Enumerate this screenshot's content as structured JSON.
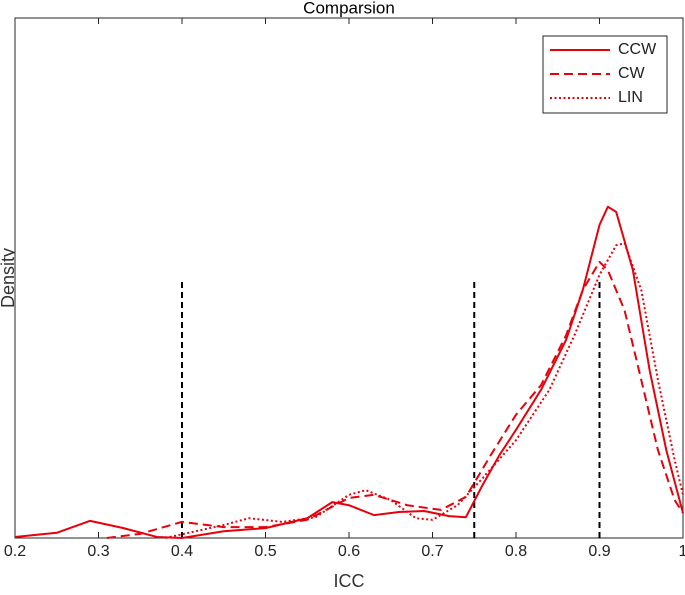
{
  "chart_data": {
    "type": "line",
    "title": "Comparsion",
    "x_label": "ICC",
    "y_label": "Density",
    "xlim": [
      0.2,
      1
    ],
    "ylim": [
      0,
      1
    ],
    "xticks": [
      0.2,
      0.3,
      0.4,
      0.5,
      0.6,
      0.7,
      0.8,
      0.9,
      1
    ],
    "vlines": [
      0.4,
      0.75,
      0.9
    ],
    "vline_height": 0.5,
    "legend": "top-right",
    "series": [
      {
        "name": "CCW",
        "color": "#e8000b",
        "style": "solid",
        "x": [
          0.2,
          0.25,
          0.29,
          0.33,
          0.37,
          0.4,
          0.45,
          0.5,
          0.55,
          0.58,
          0.6,
          0.63,
          0.66,
          0.69,
          0.72,
          0.74,
          0.76,
          0.78,
          0.8,
          0.83,
          0.86,
          0.88,
          0.9,
          0.91,
          0.92,
          0.94,
          0.96,
          0.98,
          1
        ],
        "values": [
          0.002,
          0.01,
          0.033,
          0.019,
          0.002,
          0,
          0.013,
          0.019,
          0.038,
          0.069,
          0.063,
          0.044,
          0.05,
          0.052,
          0.042,
          0.04,
          0.102,
          0.159,
          0.208,
          0.285,
          0.381,
          0.477,
          0.602,
          0.637,
          0.627,
          0.515,
          0.323,
          0.169,
          0.048
        ]
      },
      {
        "name": "CW",
        "color": "#e8000b",
        "style": "dashed",
        "x": [
          0.31,
          0.35,
          0.4,
          0.45,
          0.5,
          0.55,
          0.6,
          0.63,
          0.67,
          0.71,
          0.74,
          0.77,
          0.8,
          0.83,
          0.86,
          0.88,
          0.9,
          0.91,
          0.93,
          0.95,
          0.97,
          0.99,
          1
        ],
        "values": [
          0,
          0.008,
          0.031,
          0.021,
          0.021,
          0.035,
          0.077,
          0.083,
          0.063,
          0.054,
          0.079,
          0.16,
          0.237,
          0.294,
          0.39,
          0.477,
          0.531,
          0.515,
          0.438,
          0.304,
          0.169,
          0.073,
          0.048
        ]
      },
      {
        "name": "LIN",
        "color": "#e8000b",
        "style": "dotted",
        "x": [
          0.38,
          0.45,
          0.48,
          0.52,
          0.56,
          0.6,
          0.62,
          0.65,
          0.68,
          0.7,
          0.73,
          0.76,
          0.8,
          0.84,
          0.87,
          0.9,
          0.92,
          0.93,
          0.95,
          0.97,
          0.99,
          1
        ],
        "values": [
          0,
          0.025,
          0.038,
          0.031,
          0.04,
          0.083,
          0.092,
          0.073,
          0.038,
          0.035,
          0.063,
          0.115,
          0.188,
          0.285,
          0.39,
          0.506,
          0.563,
          0.567,
          0.477,
          0.304,
          0.15,
          0.083
        ]
      }
    ]
  }
}
